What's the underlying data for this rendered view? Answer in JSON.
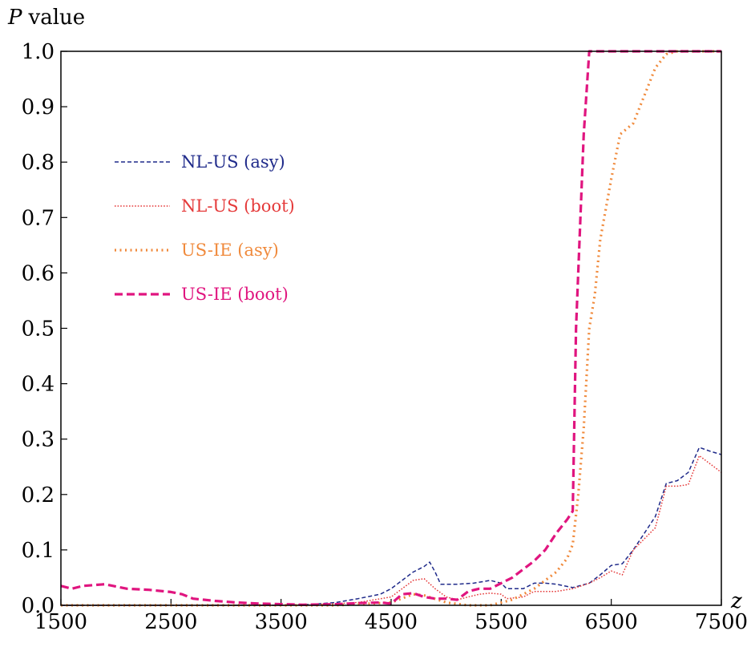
{
  "chart_data": {
    "type": "line",
    "title": "",
    "ylabel_var": "P",
    "ylabel_text": "value",
    "xlabel": "z",
    "xlim": [
      1500,
      7500
    ],
    "ylim": [
      0.0,
      1.0
    ],
    "xticks": [
      1500,
      2500,
      3500,
      4500,
      5500,
      6500,
      7500
    ],
    "yticks": [
      "0.0",
      "0.1",
      "0.2",
      "0.3",
      "0.4",
      "0.5",
      "0.6",
      "0.7",
      "0.8",
      "0.9",
      "1.0"
    ],
    "legend": "upper-left",
    "series": [
      {
        "name": "NL-US (asy)",
        "color": "#1f2a8a",
        "style": "dashed-fine",
        "points": [
          [
            1500,
            0.0
          ],
          [
            3500,
            0.0
          ],
          [
            3800,
            0.002
          ],
          [
            4000,
            0.005
          ],
          [
            4200,
            0.012
          ],
          [
            4400,
            0.02
          ],
          [
            4500,
            0.03
          ],
          [
            4600,
            0.045
          ],
          [
            4700,
            0.06
          ],
          [
            4800,
            0.07
          ],
          [
            4850,
            0.078
          ],
          [
            4900,
            0.06
          ],
          [
            4950,
            0.038
          ],
          [
            5100,
            0.038
          ],
          [
            5250,
            0.04
          ],
          [
            5400,
            0.045
          ],
          [
            5500,
            0.04
          ],
          [
            5550,
            0.03
          ],
          [
            5700,
            0.03
          ],
          [
            5800,
            0.04
          ],
          [
            5900,
            0.04
          ],
          [
            6000,
            0.038
          ],
          [
            6150,
            0.032
          ],
          [
            6300,
            0.04
          ],
          [
            6400,
            0.055
          ],
          [
            6500,
            0.072
          ],
          [
            6600,
            0.075
          ],
          [
            6700,
            0.1
          ],
          [
            6800,
            0.13
          ],
          [
            6900,
            0.16
          ],
          [
            7000,
            0.22
          ],
          [
            7100,
            0.225
          ],
          [
            7200,
            0.24
          ],
          [
            7300,
            0.285
          ],
          [
            7400,
            0.278
          ],
          [
            7500,
            0.272
          ]
        ]
      },
      {
        "name": "NL-US (boot)",
        "color": "#e53a3a",
        "style": "dotted-fine",
        "points": [
          [
            1500,
            0.0
          ],
          [
            3500,
            0.0
          ],
          [
            3800,
            0.001
          ],
          [
            4200,
            0.005
          ],
          [
            4500,
            0.015
          ],
          [
            4600,
            0.03
          ],
          [
            4700,
            0.045
          ],
          [
            4800,
            0.048
          ],
          [
            4900,
            0.03
          ],
          [
            5000,
            0.015
          ],
          [
            5100,
            0.01
          ],
          [
            5200,
            0.015
          ],
          [
            5300,
            0.02
          ],
          [
            5400,
            0.022
          ],
          [
            5500,
            0.02
          ],
          [
            5550,
            0.012
          ],
          [
            5700,
            0.015
          ],
          [
            5800,
            0.025
          ],
          [
            5900,
            0.025
          ],
          [
            6000,
            0.025
          ],
          [
            6150,
            0.03
          ],
          [
            6300,
            0.04
          ],
          [
            6400,
            0.05
          ],
          [
            6500,
            0.062
          ],
          [
            6600,
            0.055
          ],
          [
            6700,
            0.1
          ],
          [
            6800,
            0.12
          ],
          [
            6900,
            0.14
          ],
          [
            7000,
            0.215
          ],
          [
            7100,
            0.215
          ],
          [
            7200,
            0.218
          ],
          [
            7300,
            0.27
          ],
          [
            7400,
            0.255
          ],
          [
            7500,
            0.24
          ]
        ]
      },
      {
        "name": "US-IE (asy)",
        "color": "#f08a3c",
        "style": "dotted-coarse",
        "points": [
          [
            1500,
            0.0
          ],
          [
            4000,
            0.0
          ],
          [
            4500,
            0.005
          ],
          [
            4700,
            0.02
          ],
          [
            4800,
            0.018
          ],
          [
            5000,
            0.005
          ],
          [
            5200,
            0.0
          ],
          [
            5400,
            0.0
          ],
          [
            5600,
            0.01
          ],
          [
            5800,
            0.03
          ],
          [
            5900,
            0.045
          ],
          [
            6000,
            0.06
          ],
          [
            6100,
            0.085
          ],
          [
            6150,
            0.11
          ],
          [
            6200,
            0.2
          ],
          [
            6250,
            0.32
          ],
          [
            6300,
            0.5
          ],
          [
            6350,
            0.56
          ],
          [
            6400,
            0.66
          ],
          [
            6500,
            0.77
          ],
          [
            6580,
            0.85
          ],
          [
            6700,
            0.87
          ],
          [
            6800,
            0.92
          ],
          [
            6900,
            0.97
          ],
          [
            7000,
            0.995
          ],
          [
            7100,
            1.0
          ],
          [
            7500,
            1.0
          ]
        ]
      },
      {
        "name": "US-IE (boot)",
        "color": "#e0157f",
        "style": "dashed-bold",
        "points": [
          [
            1500,
            0.035
          ],
          [
            1600,
            0.03
          ],
          [
            1700,
            0.035
          ],
          [
            1900,
            0.038
          ],
          [
            2100,
            0.03
          ],
          [
            2300,
            0.028
          ],
          [
            2500,
            0.024
          ],
          [
            2600,
            0.02
          ],
          [
            2700,
            0.012
          ],
          [
            2900,
            0.008
          ],
          [
            3100,
            0.005
          ],
          [
            3300,
            0.003
          ],
          [
            3500,
            0.002
          ],
          [
            3700,
            0.001
          ],
          [
            4000,
            0.002
          ],
          [
            4200,
            0.004
          ],
          [
            4400,
            0.005
          ],
          [
            4500,
            0.003
          ],
          [
            4600,
            0.02
          ],
          [
            4700,
            0.022
          ],
          [
            4800,
            0.015
          ],
          [
            4900,
            0.012
          ],
          [
            5000,
            0.012
          ],
          [
            5100,
            0.01
          ],
          [
            5200,
            0.025
          ],
          [
            5300,
            0.03
          ],
          [
            5400,
            0.03
          ],
          [
            5500,
            0.04
          ],
          [
            5600,
            0.05
          ],
          [
            5700,
            0.065
          ],
          [
            5800,
            0.08
          ],
          [
            5900,
            0.1
          ],
          [
            6000,
            0.13
          ],
          [
            6100,
            0.155
          ],
          [
            6150,
            0.17
          ],
          [
            6180,
            0.5
          ],
          [
            6250,
            0.85
          ],
          [
            6300,
            1.0
          ],
          [
            7500,
            1.0
          ]
        ]
      }
    ]
  }
}
